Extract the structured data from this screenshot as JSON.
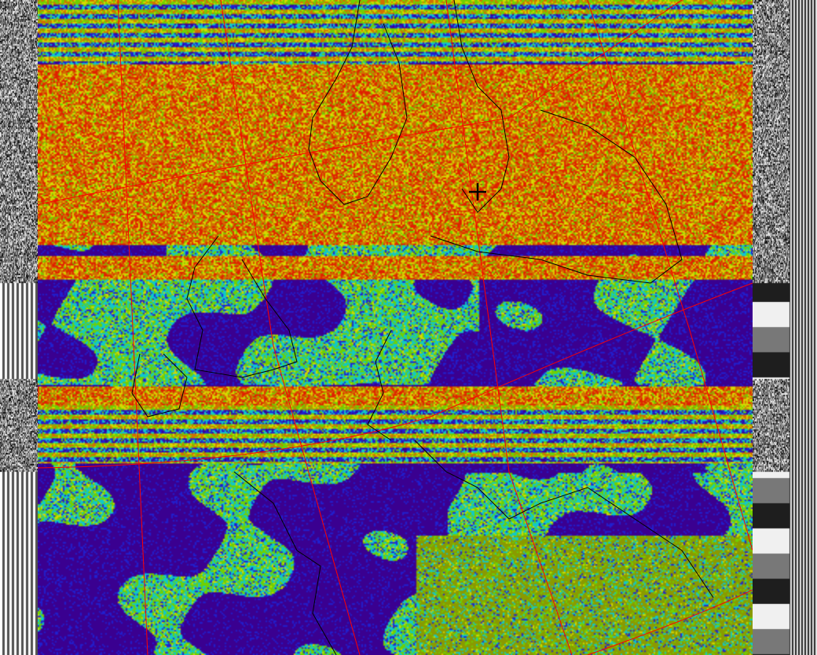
{
  "image": {
    "kind": "NOAA APT weather satellite image, false-color, with map overlay",
    "palette": {
      "deep_purple": "#3a0090",
      "blue": "#2020d0",
      "cyan": "#10c8c8",
      "green": "#70d000",
      "olive": "#8a9a00",
      "yellow": "#d8d800",
      "orange": "#d07000",
      "red": "#e02000"
    },
    "graticule_color": "#ff0000",
    "coastline_color": "#000000",
    "marker_icon": "crosshair-icon"
  }
}
